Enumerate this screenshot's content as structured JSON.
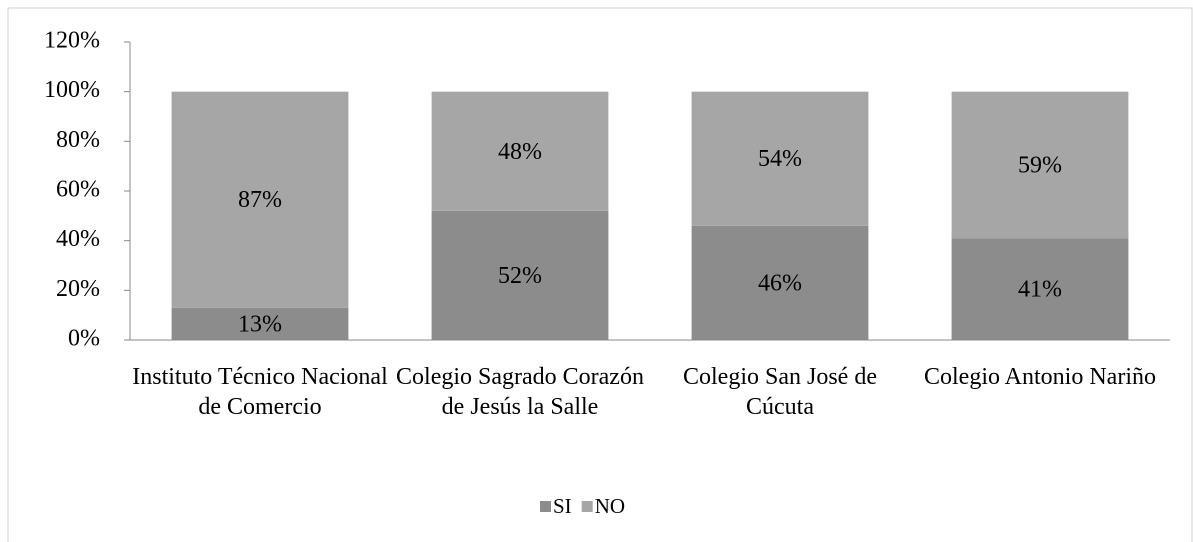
{
  "chart_data": {
    "type": "stacked_bar",
    "categories": [
      "Instituto Técnico Nacional de Comercio",
      "Colegio Sagrado Corazón de Jesús la Salle",
      "Colegio San José de Cúcuta",
      "Colegio Antonio Nariño"
    ],
    "series": [
      {
        "name": "SI",
        "color": "#8c8c8c",
        "values": [
          13,
          52,
          46,
          41
        ],
        "value_labels": [
          "13%",
          "52%",
          "46%",
          "41%"
        ]
      },
      {
        "name": "NO",
        "color": "#a6a6a6",
        "values": [
          87,
          48,
          54,
          59
        ],
        "value_labels": [
          "87%",
          "48%",
          "54%",
          "59%"
        ]
      }
    ],
    "ylim": [
      0,
      120
    ],
    "yticks": [
      {
        "value": 0,
        "label": "0%"
      },
      {
        "value": 20,
        "label": "20%"
      },
      {
        "value": 40,
        "label": "40%"
      },
      {
        "value": 60,
        "label": "60%"
      },
      {
        "value": 80,
        "label": "80%"
      },
      {
        "value": 100,
        "label": "100%"
      },
      {
        "value": 120,
        "label": "120%"
      }
    ],
    "legend": "bottom"
  }
}
